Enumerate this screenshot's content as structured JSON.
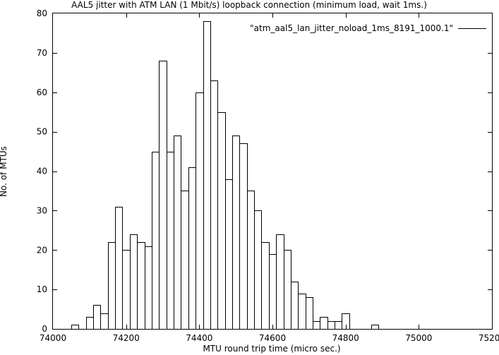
{
  "chart_data": {
    "type": "bar",
    "title": "AAL5 jitter with ATM LAN (1 Mbit/s) loopback connection (minimum load, wait 1ms.)",
    "xlabel": "MTU round trip time (micro sec.)",
    "ylabel": "No. of MTUs",
    "xlim": [
      74000,
      75200
    ],
    "ylim": [
      0,
      80
    ],
    "xticks": [
      74000,
      74200,
      74400,
      74600,
      74800,
      75000,
      75200
    ],
    "yticks": [
      0,
      10,
      20,
      30,
      40,
      50,
      60,
      70,
      80
    ],
    "legend_position": "top-right",
    "bin_width": 20,
    "series": [
      {
        "name": "\"atm_aal5_lan_jitter_noload_1ms_8191_1000.1\"",
        "style": "histogram-steps",
        "x": [
          74060,
          74080,
          74100,
          74120,
          74140,
          74160,
          74180,
          74200,
          74220,
          74240,
          74260,
          74280,
          74300,
          74320,
          74340,
          74360,
          74380,
          74400,
          74420,
          74440,
          74460,
          74480,
          74500,
          74520,
          74540,
          74560,
          74580,
          74600,
          74620,
          74640,
          74660,
          74680,
          74700,
          74720,
          74740,
          74760,
          74780,
          74800,
          74820,
          74840,
          74860,
          74880,
          74900,
          74920,
          74940
        ],
        "values": [
          1,
          0,
          3,
          6,
          4,
          22,
          31,
          20,
          24,
          22,
          21,
          45,
          68,
          45,
          49,
          35,
          41,
          60,
          78,
          63,
          55,
          38,
          49,
          47,
          35,
          30,
          22,
          19,
          24,
          20,
          12,
          9,
          8,
          2,
          3,
          2,
          2,
          4,
          0,
          0,
          0,
          1,
          0,
          0,
          0
        ]
      }
    ]
  },
  "colors": {
    "line": "#000000",
    "background": "#ffffff"
  }
}
